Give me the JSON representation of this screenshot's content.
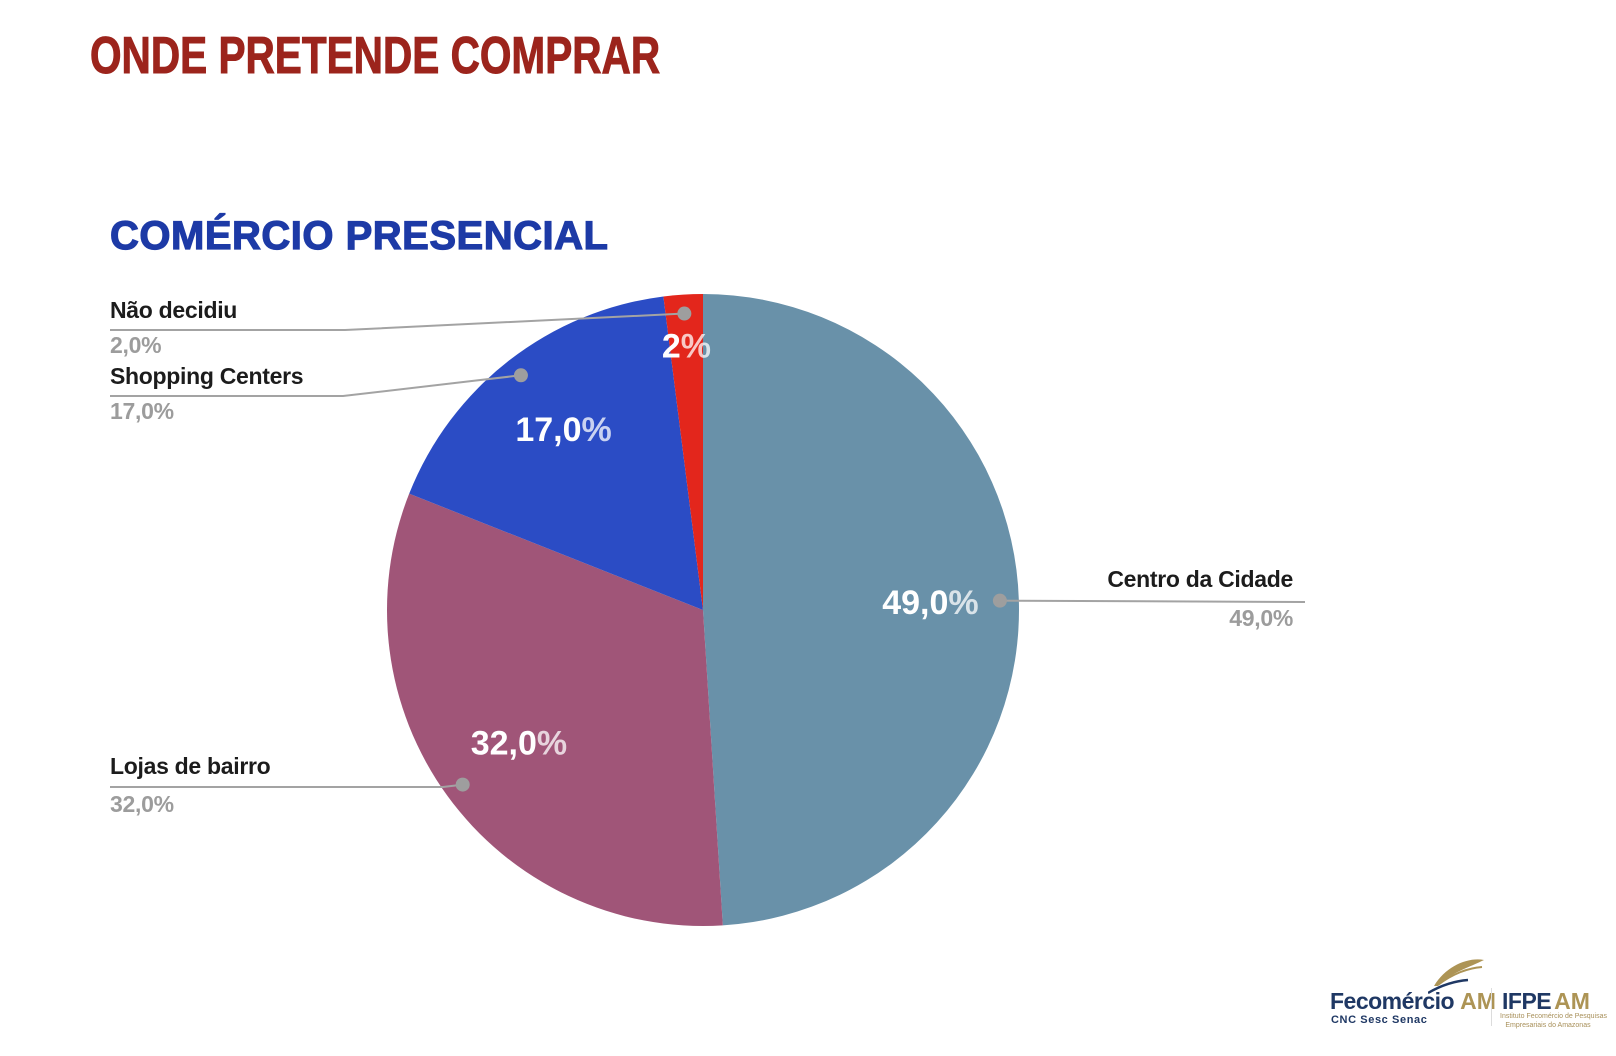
{
  "page": {
    "background": "#FFFFFF"
  },
  "header": {
    "title": "ONDE PRETENDE COMPRAR",
    "title_color": "#9C241C"
  },
  "chart_data": {
    "type": "pie",
    "title": "COMÉRCIO PRESENCIAL",
    "title_color": "#1D3AA6",
    "direction": "clockwise",
    "start_angle_deg": 0,
    "total": 100,
    "slices": [
      {
        "label": "Centro da Cidade",
        "value": 49.0,
        "pct_label": "49,0%",
        "inside_label": "49,0%",
        "color": "#6991A9"
      },
      {
        "label": "Lojas de bairro",
        "value": 32.0,
        "pct_label": "32,0%",
        "inside_label": "32,0%",
        "color": "#A05578"
      },
      {
        "label": "Shopping Centers",
        "value": 17.0,
        "pct_label": "17,0%",
        "inside_label": "17,0%",
        "color": "#2B4CC5"
      },
      {
        "label": "Não decidiu",
        "value": 2.0,
        "pct_label": "2,0%",
        "inside_label": "2%",
        "color": "#E3261C"
      }
    ],
    "inside_label_color": "#FFFFFF",
    "callout_name_color": "#1C1C1C",
    "callout_pct_color": "#9C9C9C",
    "leader_line_color": "#A3A3A3",
    "dot_color": "#9E9E9E"
  },
  "footer": {
    "fecomercio": {
      "brand": "Fecomércio",
      "region": "AM",
      "tagline": "CNC Sesc Senac",
      "brand_color": "#1F3864",
      "accent_color": "#AD9455"
    },
    "ifpe": {
      "brand": "IFPE",
      "region": "AM",
      "subtext_line1": "Instituto Fecomércio de Pesquisas",
      "subtext_line2": "Empresariais do Amazonas"
    }
  }
}
